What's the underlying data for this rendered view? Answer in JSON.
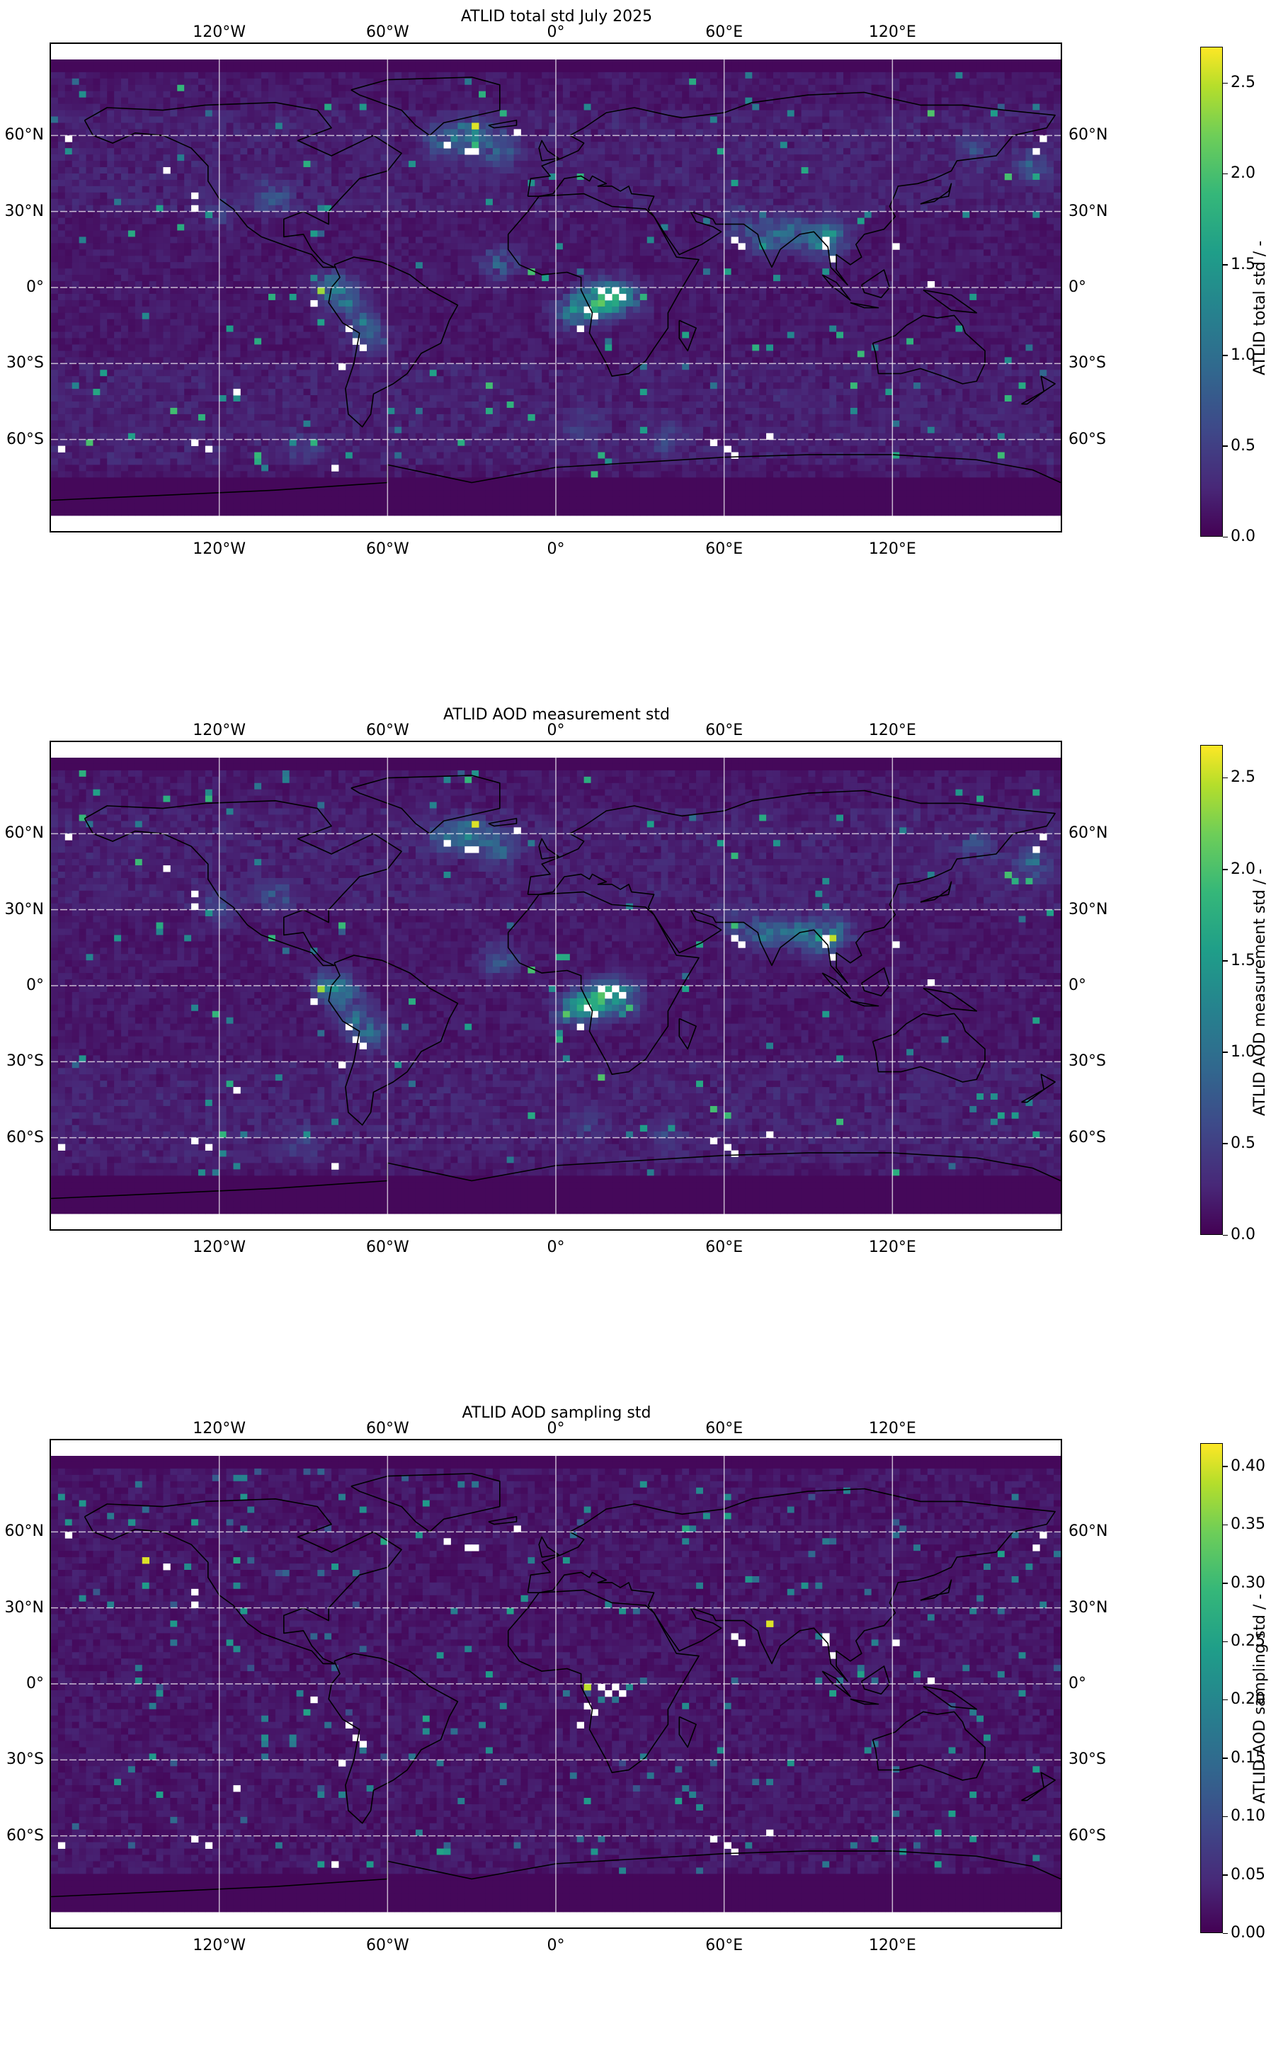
{
  "panels": [
    {
      "title": "ATLID total std July 2025",
      "colorbar_label": "ATLID total std / -",
      "colorbar_ticks": [
        "0.0",
        "0.5",
        "1.0",
        "1.5",
        "2.0",
        "2.5"
      ],
      "colorbar_max": 2.7
    },
    {
      "title": "ATLID AOD measurement std",
      "colorbar_label": "ATLID AOD measurement std / -",
      "colorbar_ticks": [
        "0.0",
        "0.5",
        "1.0",
        "1.5",
        "2.0",
        "2.5"
      ],
      "colorbar_max": 2.68
    },
    {
      "title": "ATLID AOD sampling std",
      "colorbar_label": "ATLID AOD sampling std / -",
      "colorbar_ticks": [
        "0.00",
        "0.05",
        "0.10",
        "0.15",
        "0.20",
        "0.25",
        "0.30",
        "0.35",
        "0.40"
      ],
      "colorbar_max": 0.42
    }
  ],
  "map": {
    "lon_labels": [
      "120°W",
      "60°W",
      "0°",
      "60°E",
      "120°E"
    ],
    "lat_labels": [
      "60°N",
      "30°N",
      "0°",
      "30°S",
      "60°S"
    ],
    "lon_range": [
      -180,
      180
    ],
    "lat_range": [
      -90,
      90
    ],
    "gridlines": true,
    "colormap": "viridis",
    "missing_color": "#ffffff"
  }
}
